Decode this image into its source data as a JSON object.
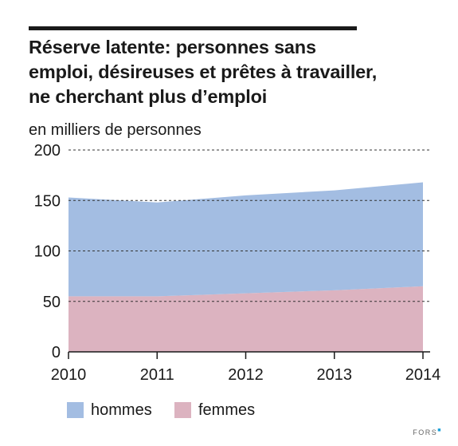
{
  "title_lines": [
    "Réserve latente: personnes sans",
    "emploi, désireuses et prêtes à travailler,",
    "ne cherchant plus d’emploi"
  ],
  "unit_label": "en milliers de personnes",
  "credit": "FORS",
  "chart_data": {
    "type": "area",
    "stacked": true,
    "title": "Réserve latente: personnes sans emploi, désireuses et prêtes à travailler, ne cherchant plus d’emploi",
    "ylabel": "en milliers de personnes",
    "xlabel": "",
    "x": [
      "2010",
      "2011",
      "2012",
      "2013",
      "2014"
    ],
    "ylim": [
      0,
      200
    ],
    "yticks": [
      0,
      50,
      100,
      150,
      200
    ],
    "grid": "dashed horizontal",
    "legend_position": "bottom",
    "series": [
      {
        "name": "femmes",
        "values": [
          55,
          55,
          58,
          61,
          65
        ],
        "color": "#dcb3c0"
      },
      {
        "name": "hommes",
        "values": [
          98,
          93,
          97,
          99,
          103
        ],
        "color": "#a3bde2"
      }
    ],
    "totals": [
      153,
      148,
      155,
      160,
      168
    ]
  }
}
